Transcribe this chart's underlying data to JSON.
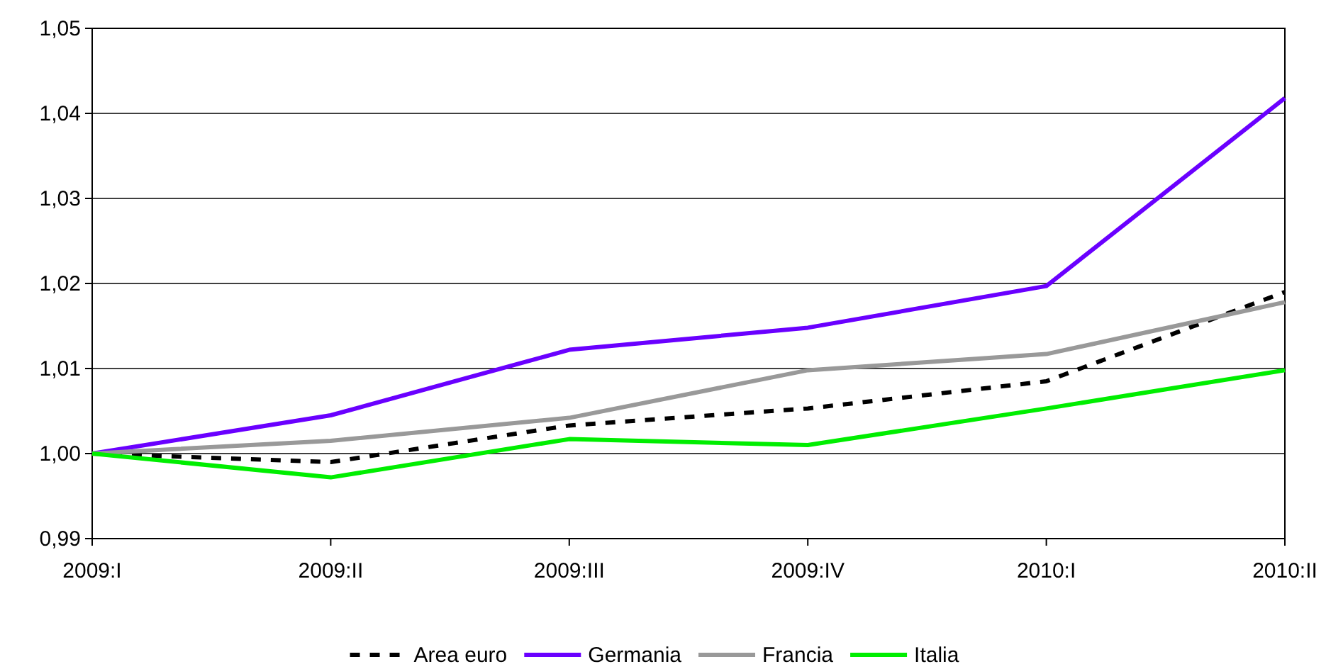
{
  "chart_data": {
    "type": "line",
    "categories": [
      "2009:I",
      "2009:II",
      "2009:III",
      "2009:IV",
      "2010:I",
      "2010:II"
    ],
    "series": [
      {
        "name": "Area euro",
        "color": "#000000",
        "line_style": "dashed",
        "values": [
          1.0,
          0.999,
          1.0033,
          1.0053,
          1.0085,
          1.019
        ]
      },
      {
        "name": "Germania",
        "color": "#6a00ff",
        "values": [
          1.0,
          1.0045,
          1.0122,
          1.0148,
          1.0197,
          1.0418
        ]
      },
      {
        "name": "Francia",
        "color": "#999999",
        "values": [
          1.0,
          1.0015,
          1.0042,
          1.0098,
          1.0117,
          1.0178
        ]
      },
      {
        "name": "Italia",
        "color": "#00ee00",
        "values": [
          1.0,
          0.9972,
          1.0017,
          1.001,
          1.0053,
          1.0098
        ]
      }
    ],
    "ylim": [
      0.99,
      1.05
    ],
    "yticks": [
      {
        "value": 0.99,
        "label": "0,99"
      },
      {
        "value": 1.0,
        "label": "1,00"
      },
      {
        "value": 1.01,
        "label": "1,01"
      },
      {
        "value": 1.02,
        "label": "1,02"
      },
      {
        "value": 1.03,
        "label": "1,03"
      },
      {
        "value": 1.04,
        "label": "1,04"
      },
      {
        "value": 1.05,
        "label": "1,05"
      }
    ],
    "grid": "y",
    "legend": "bottom",
    "line_style": "solid"
  }
}
